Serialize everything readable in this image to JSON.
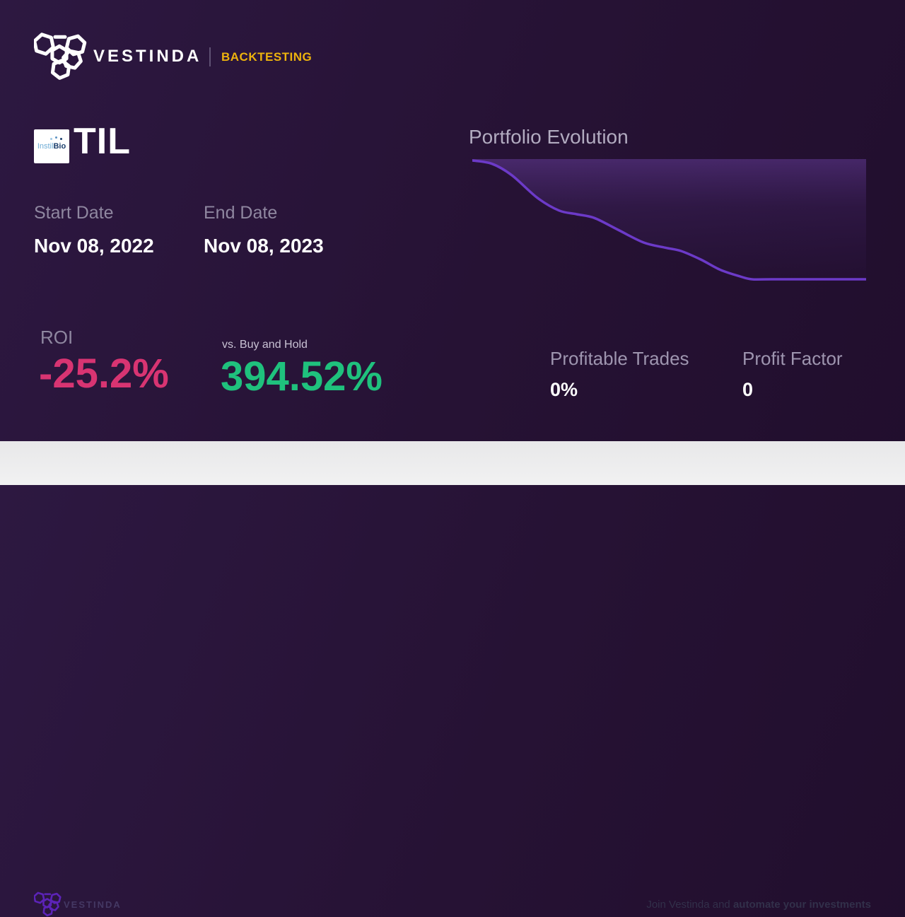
{
  "brand": {
    "name": "VESTINDA",
    "tag": "BACKTESTING"
  },
  "asset": {
    "ticker": "TIL",
    "logo_text_a": "Instil",
    "logo_text_b": "Bio"
  },
  "dates": {
    "start_label": "Start Date",
    "start_value": "Nov 08, 2022",
    "end_label": "End Date",
    "end_value": "Nov 08, 2023"
  },
  "metrics": {
    "roi_label": "ROI",
    "roi_value": "-25.2%",
    "vs_label": "vs. Buy and Hold",
    "vs_value": "394.52%",
    "profitable_trades_label": "Profitable Trades",
    "profitable_trades_value": "0%",
    "profit_factor_label": "Profit Factor",
    "profit_factor_value": "0"
  },
  "footer": {
    "brand_name": "VESTINDA",
    "cta_regular": "Join Vestinda and ",
    "cta_bold": "automate your investments"
  },
  "colors": {
    "accent_yellow": "#edb30d",
    "roi_negative": "#d83472",
    "vs_positive": "#1fc17d",
    "chart_line": "#6c3ac8",
    "background_top": "#2d1841",
    "background_bottom": "#210e2d",
    "footer_bg": "#ececec",
    "footer_purple": "#5c23b8"
  },
  "chart_data": {
    "type": "area",
    "title": "Portfolio Evolution",
    "xlabel": "",
    "ylabel": "",
    "axes": "hidden",
    "grid": false,
    "legend": false,
    "x_range": [
      0,
      1
    ],
    "ylim": [
      70,
      102
    ],
    "baseline_value": 100,
    "final_value": 74.8,
    "fill_side": "above-line",
    "points": [
      {
        "x": 0.0,
        "v": 100.0
      },
      {
        "x": 0.05,
        "v": 99.3
      },
      {
        "x": 0.1,
        "v": 96.9
      },
      {
        "x": 0.165,
        "v": 92.1
      },
      {
        "x": 0.22,
        "v": 89.4
      },
      {
        "x": 0.265,
        "v": 88.6
      },
      {
        "x": 0.31,
        "v": 87.8
      },
      {
        "x": 0.37,
        "v": 85.3
      },
      {
        "x": 0.435,
        "v": 82.6
      },
      {
        "x": 0.49,
        "v": 81.5
      },
      {
        "x": 0.53,
        "v": 80.8
      },
      {
        "x": 0.58,
        "v": 79.0
      },
      {
        "x": 0.63,
        "v": 76.8
      },
      {
        "x": 0.68,
        "v": 75.4
      },
      {
        "x": 0.71,
        "v": 74.8
      },
      {
        "x": 0.76,
        "v": 74.8
      },
      {
        "x": 1.0,
        "v": 74.8
      }
    ]
  }
}
